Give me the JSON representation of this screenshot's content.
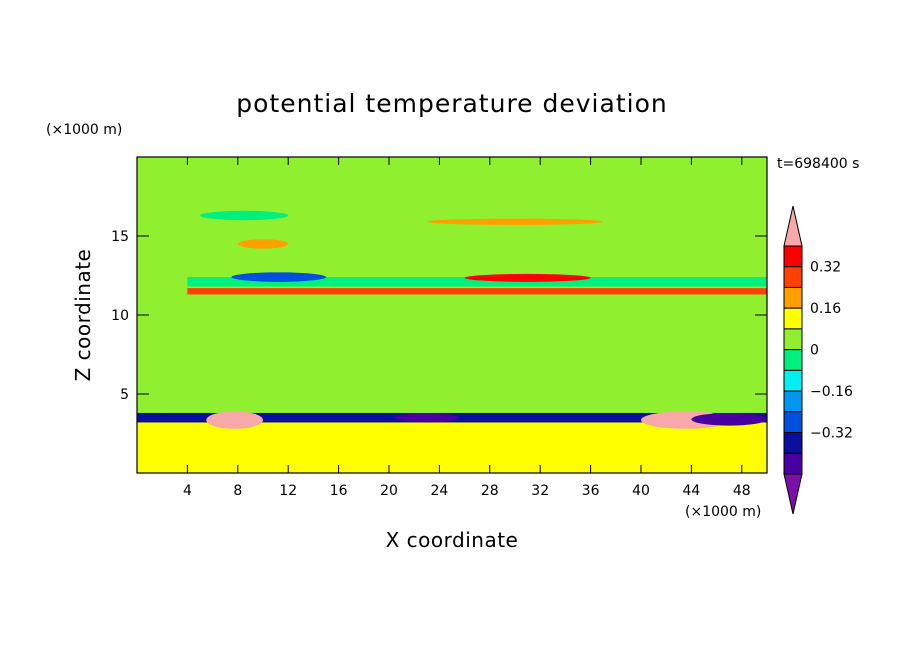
{
  "chart_data": {
    "type": "heatmap",
    "title": "potential temperature deviation",
    "xlabel": "X coordinate",
    "ylabel": "Z coordinate",
    "x_unit": "(×1000 m)",
    "y_unit": "(×1000 m)",
    "time_label": "t=698400 s",
    "xlim": [
      0,
      50
    ],
    "ylim": [
      0,
      20
    ],
    "x_ticks": [
      4,
      8,
      12,
      16,
      20,
      24,
      28,
      32,
      36,
      40,
      44,
      48
    ],
    "y_ticks": [
      5,
      10,
      15
    ],
    "colorbar": {
      "levels": [
        -0.48,
        -0.4,
        -0.32,
        -0.24,
        -0.16,
        -0.08,
        0,
        0.08,
        0.16,
        0.24,
        0.32,
        0.4
      ],
      "colors": [
        "#7b0fa8",
        "#4a00a0",
        "#0a0f9c",
        "#0050e0",
        "#0095f0",
        "#00f0f0",
        "#00f080",
        "#90f030",
        "#ffff00",
        "#ffa000",
        "#ff4000",
        "#ff0000",
        "#f8a8a8"
      ],
      "labels": [
        "0.32",
        "0.16",
        "0",
        "−0.16",
        "−0.32"
      ],
      "label_values": [
        0.32,
        0.16,
        0,
        -0.16,
        -0.32
      ]
    },
    "background_field": "#90f030",
    "features": [
      {
        "shape": "band",
        "z": [
          0,
          3.2
        ],
        "value": 0.08
      },
      {
        "shape": "band",
        "z": [
          3.2,
          3.8
        ],
        "value": -0.4
      },
      {
        "shape": "band",
        "z": [
          11.3,
          11.7
        ],
        "value": 0.24
      },
      {
        "shape": "band",
        "z": [
          11.8,
          12.4
        ],
        "value": -0.08
      },
      {
        "shape": "blob",
        "x": [
          0,
          4
        ],
        "z": [
          3.8,
          20
        ],
        "value": 0
      },
      {
        "shape": "blob",
        "x": [
          8,
          12
        ],
        "z": [
          14.2,
          14.8
        ],
        "value": 0.16
      },
      {
        "shape": "blob",
        "x": [
          7.5,
          15
        ],
        "z": [
          12.1,
          12.7
        ],
        "value": -0.32
      },
      {
        "shape": "blob",
        "x": [
          26,
          36
        ],
        "z": [
          12.1,
          12.6
        ],
        "value": 0.32
      },
      {
        "shape": "blob",
        "x": [
          23,
          37
        ],
        "z": [
          15.7,
          16.1
        ],
        "value": 0.16
      },
      {
        "shape": "blob",
        "x": [
          5,
          12
        ],
        "z": [
          16.0,
          16.6
        ],
        "value": -0.08
      },
      {
        "shape": "blob",
        "x": [
          5.5,
          10
        ],
        "z": [
          2.8,
          3.9
        ],
        "value": 0.4
      },
      {
        "shape": "blob",
        "x": [
          40,
          47
        ],
        "z": [
          2.8,
          3.9
        ],
        "value": 0.4
      },
      {
        "shape": "blob",
        "x": [
          20.5,
          25.5
        ],
        "z": [
          3.2,
          3.8
        ],
        "value": -0.48
      },
      {
        "shape": "blob",
        "x": [
          44,
          50
        ],
        "z": [
          3.0,
          3.8
        ],
        "value": -0.48
      },
      {
        "shape": "blob",
        "x": [
          33.5,
          37.5
        ],
        "z": [
          3.9,
          11.2
        ],
        "value": 0
      },
      {
        "shape": "blob",
        "x": [
          20,
          25
        ],
        "z": [
          4.0,
          10.3
        ],
        "value": 0
      },
      {
        "shape": "blob",
        "x": [
          36,
          50
        ],
        "z": [
          16,
          20
        ],
        "value": 0
      },
      {
        "shape": "blob",
        "x": [
          14,
          15
        ],
        "z": [
          16,
          20
        ],
        "value": 0
      }
    ]
  }
}
